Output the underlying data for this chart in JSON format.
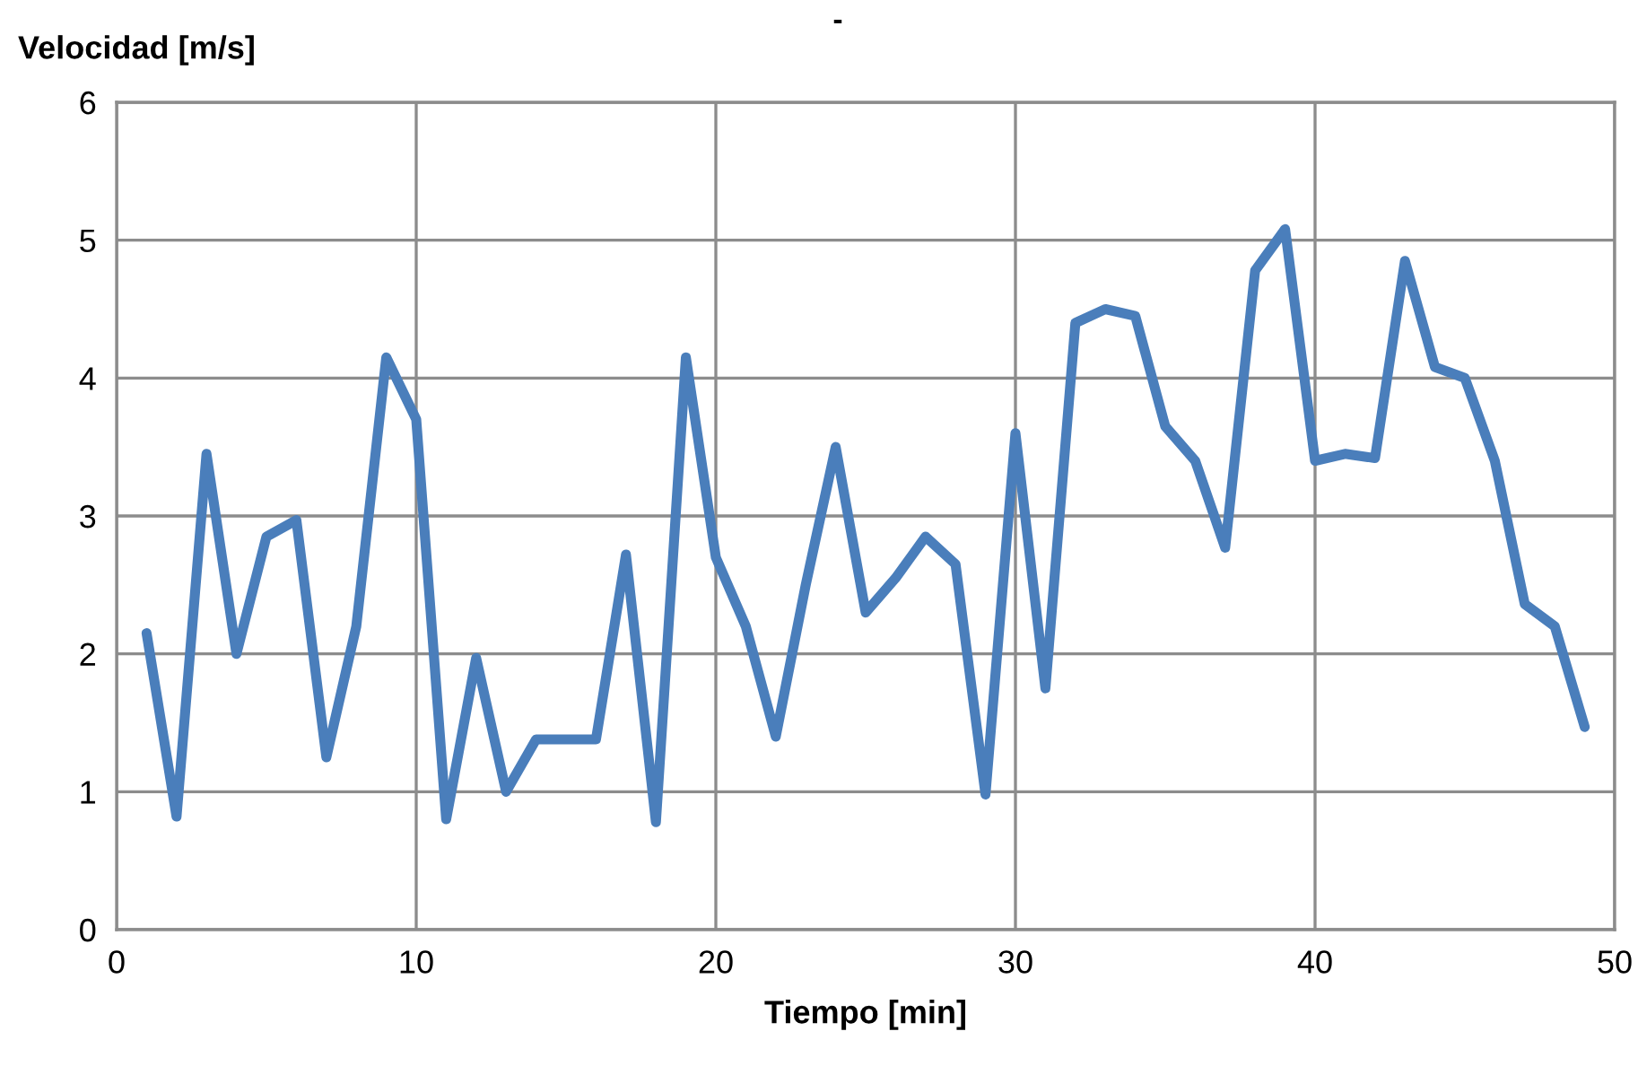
{
  "chart_data": {
    "type": "line",
    "title": "-",
    "xlabel": "Tiempo [min]",
    "ylabel": "Velocidad [m/s]",
    "x": [
      1,
      2,
      3,
      4,
      5,
      6,
      7,
      8,
      9,
      10,
      11,
      12,
      13,
      14,
      15,
      16,
      17,
      18,
      19,
      20,
      21,
      22,
      23,
      24,
      25,
      26,
      27,
      28,
      29,
      30,
      31,
      32,
      33,
      34,
      35,
      36,
      37,
      38,
      39,
      40,
      41,
      42,
      43,
      44,
      45,
      46,
      47,
      48,
      49
    ],
    "series": [
      {
        "color": "#4a7ebb",
        "values": [
          2.15,
          0.82,
          3.45,
          2.0,
          2.85,
          2.97,
          1.25,
          2.2,
          4.15,
          3.7,
          0.8,
          1.97,
          1.0,
          1.38,
          1.38,
          1.38,
          2.72,
          0.78,
          4.15,
          2.7,
          2.2,
          1.4,
          2.5,
          3.5,
          2.3,
          2.55,
          2.85,
          2.65,
          0.98,
          3.6,
          1.75,
          4.4,
          4.5,
          4.45,
          3.65,
          3.4,
          2.77,
          4.78,
          5.08,
          3.4,
          3.45,
          3.42,
          4.85,
          4.08,
          4.0,
          3.4,
          2.36,
          2.2,
          1.47
        ]
      }
    ],
    "xlim": [
      0,
      50
    ],
    "xticks": [
      0,
      10,
      20,
      30,
      40,
      50
    ],
    "ylim": [
      0,
      6
    ],
    "yticks": [
      0,
      1,
      2,
      3,
      4,
      5,
      6
    ],
    "grid": true,
    "legend": false,
    "marker": "none",
    "line_style": "solid"
  }
}
